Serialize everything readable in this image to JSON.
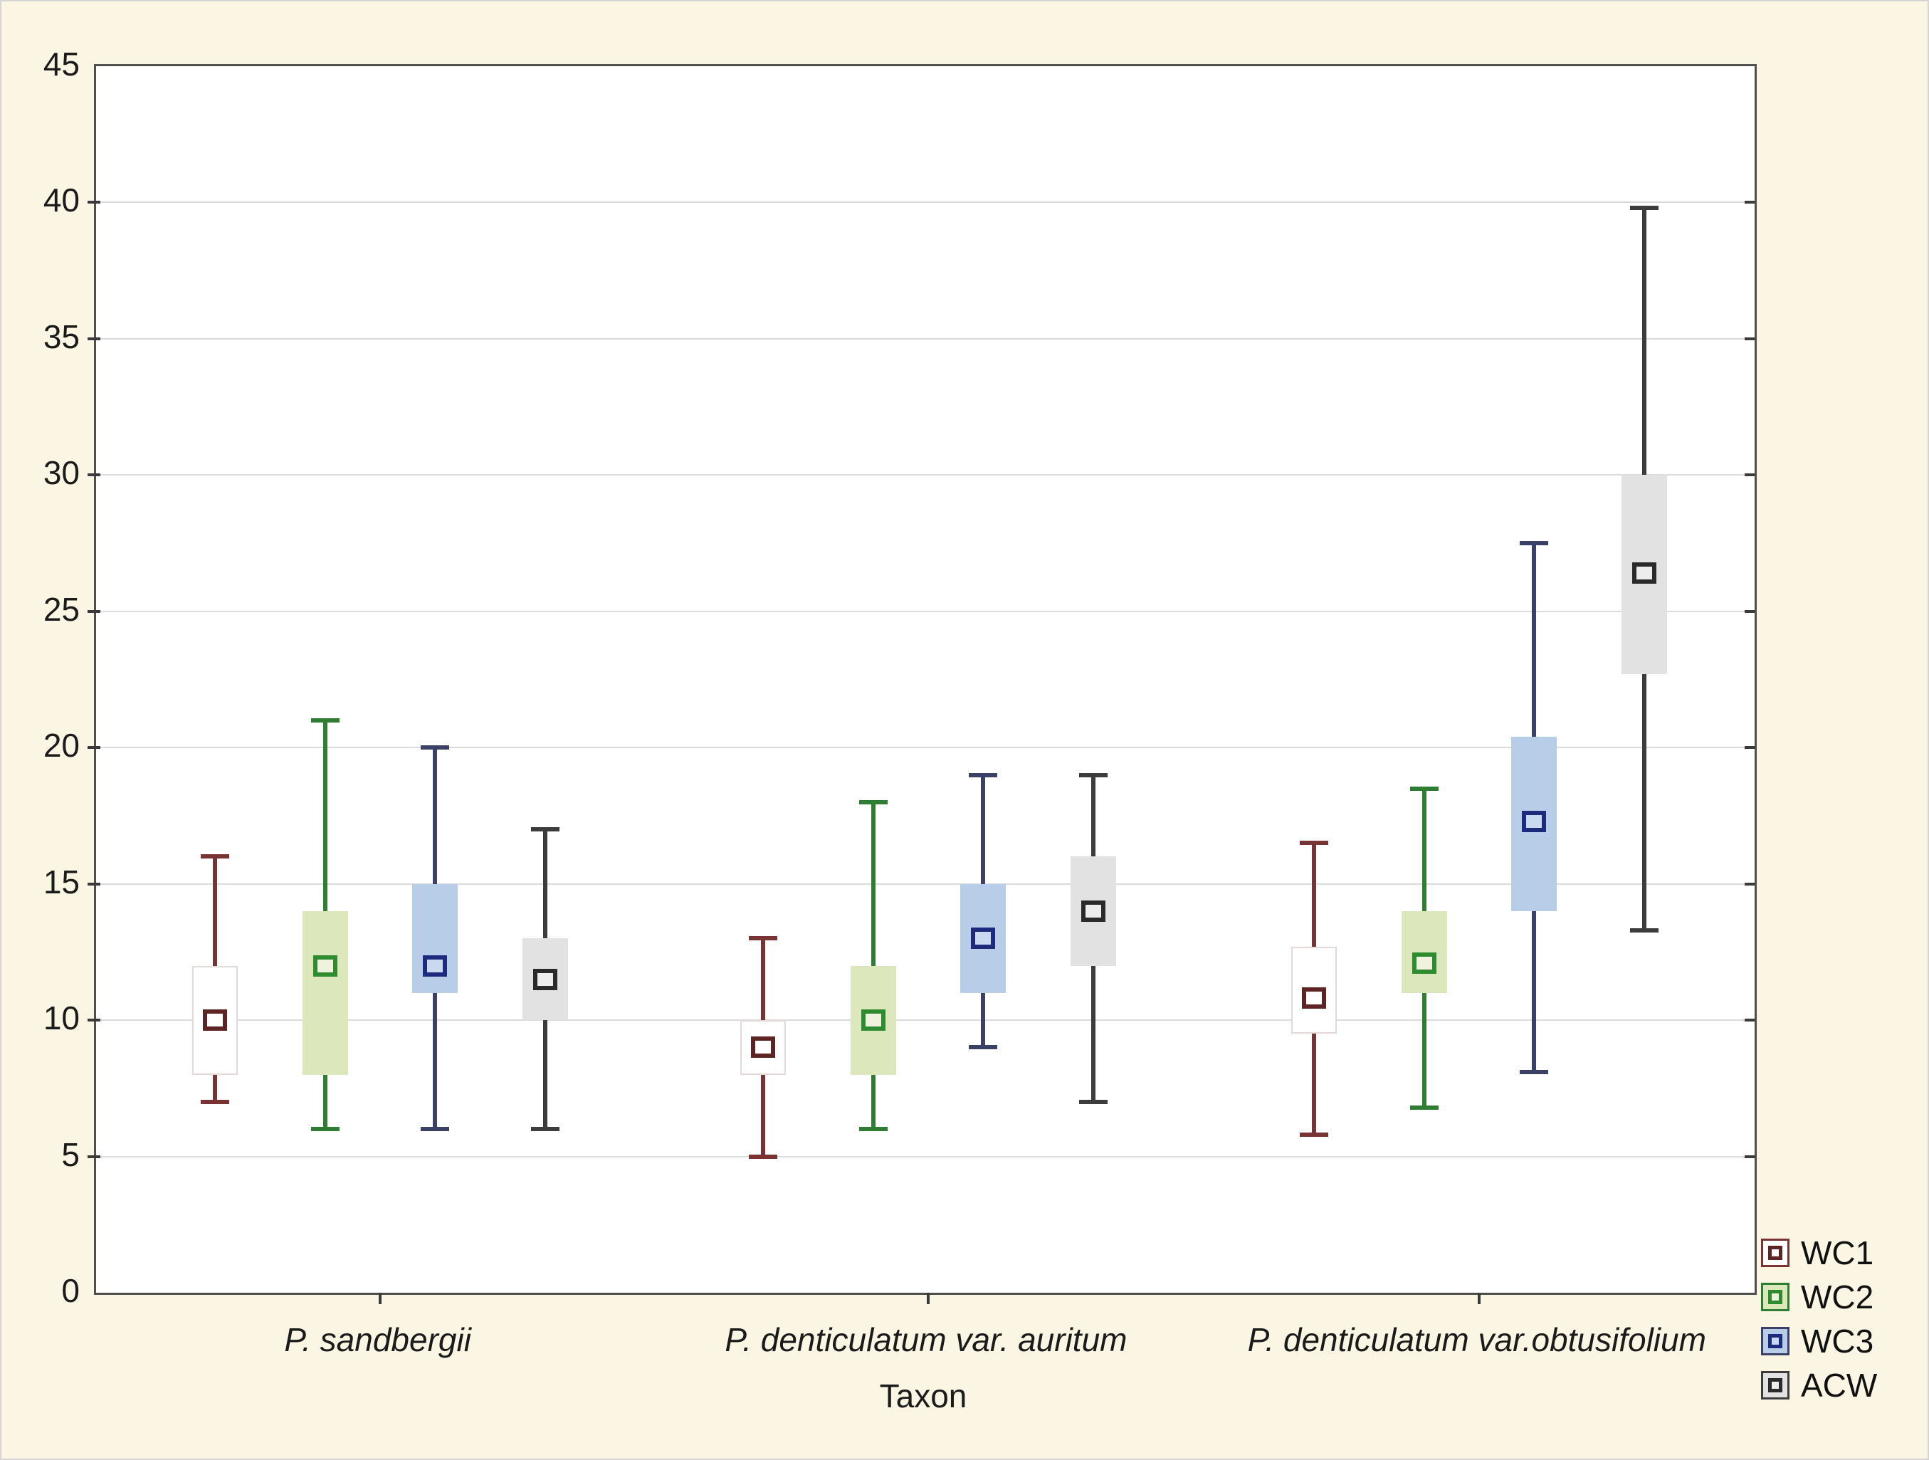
{
  "colors": {
    "page_background": "#FBF5E3",
    "plot_background": "#FFFFFF",
    "grid": "#DBDBDB",
    "frame": "#4F4F4F",
    "tick": "#3A3A3A",
    "text": "#1B1B1B"
  },
  "chart_data": {
    "type": "boxplot",
    "title": "",
    "xlabel": "Taxon",
    "ylabel": "",
    "ylim": [
      0,
      45
    ],
    "yticks": [
      "0",
      "5",
      "10",
      "15",
      "20",
      "25",
      "30",
      "35",
      "40",
      "45"
    ],
    "grid": true,
    "legend_position": "bottom-right",
    "categories": [
      "P. sandbergii",
      "P. denticulatum var. auritum",
      "P. denticulatum var.obtusifolium"
    ],
    "series": [
      {
        "name": "WC1",
        "whisker_color": "#7A3333",
        "box_fill": "#FFFFFF",
        "box_border": "#E5D8D8",
        "marker_border": "#5E2424",
        "marker_fill": "#FFFFFF",
        "boxes": [
          {
            "low": 7,
            "q1": 8,
            "median": 10,
            "q3": 12,
            "high": 16
          },
          {
            "low": 5,
            "q1": 8,
            "median": 9,
            "q3": 10,
            "high": 13
          },
          {
            "low": 5.8,
            "q1": 9.5,
            "median": 10.8,
            "q3": 12.7,
            "high": 16.5
          }
        ]
      },
      {
        "name": "WC2",
        "whisker_color": "#2F7D33",
        "box_fill": "#DDE7BC",
        "box_border": "#DDE7BC",
        "marker_border": "#2F8B2F",
        "marker_fill": "#EFF3DE",
        "boxes": [
          {
            "low": 6,
            "q1": 8,
            "median": 12,
            "q3": 14,
            "high": 21
          },
          {
            "low": 6,
            "q1": 8,
            "median": 10,
            "q3": 12,
            "high": 18
          },
          {
            "low": 6.8,
            "q1": 11,
            "median": 12.1,
            "q3": 14,
            "high": 18.5
          }
        ]
      },
      {
        "name": "WC3",
        "whisker_color": "#3A4066",
        "box_fill": "#B8CDE8",
        "box_border": "#B8CDE8",
        "marker_border": "#1E2B7D",
        "marker_fill": "#CBD9F0",
        "boxes": [
          {
            "low": 6,
            "q1": 11,
            "median": 12,
            "q3": 15,
            "high": 20
          },
          {
            "low": 9,
            "q1": 11,
            "median": 13,
            "q3": 15,
            "high": 19
          },
          {
            "low": 8.1,
            "q1": 14,
            "median": 17.3,
            "q3": 20.4,
            "high": 27.5
          }
        ]
      },
      {
        "name": "ACW",
        "whisker_color": "#3C3C3C",
        "box_fill": "#E2E2E2",
        "box_border": "#E2E2E2",
        "marker_border": "#2A2A2A",
        "marker_fill": "#EDEDED",
        "boxes": [
          {
            "low": 6,
            "q1": 10,
            "median": 11.5,
            "q3": 13,
            "high": 17
          },
          {
            "low": 7,
            "q1": 12,
            "median": 14,
            "q3": 16,
            "high": 19
          },
          {
            "low": 13.3,
            "q1": 22.7,
            "median": 26.4,
            "q3": 30,
            "high": 39.8
          }
        ]
      }
    ]
  }
}
